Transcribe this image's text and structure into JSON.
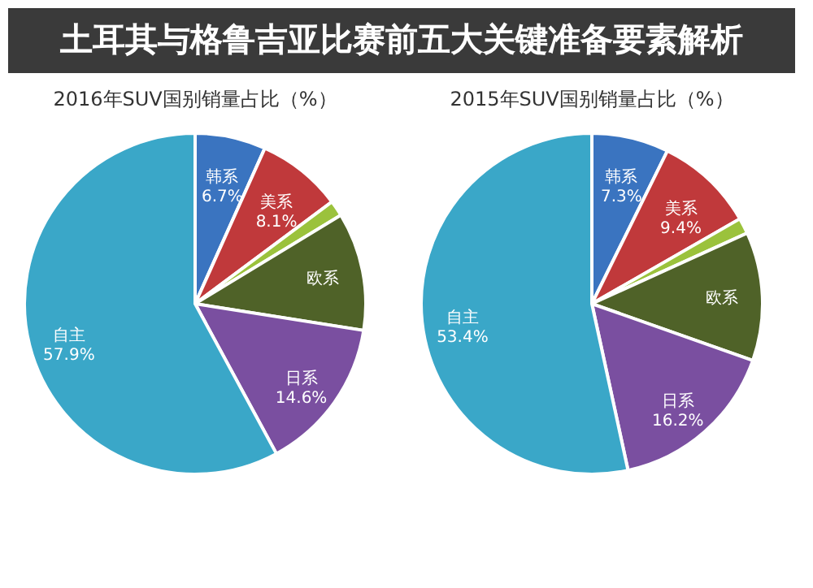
{
  "chart_data": [
    {
      "type": "other",
      "title": "土耳其与格鲁吉亚比赛前五大关键准备要素解析"
    },
    {
      "type": "pie",
      "title": "2016年SUV国别销量占比（%）",
      "categories": [
        "韩系",
        "美系",
        null,
        "欧系",
        "日系",
        "自主"
      ],
      "values": [
        6.7,
        8.1,
        1.5,
        11.2,
        14.6,
        57.9
      ],
      "value_labels": [
        "6.7%",
        "8.1%",
        null,
        null,
        "14.6%",
        "57.9%"
      ],
      "colors": [
        "#3a74c0",
        "#c0393b",
        "#9bc23c",
        "#4f6228",
        "#7a4fa0",
        "#3aa7c8"
      ],
      "legend": false
    },
    {
      "type": "pie",
      "title": "2015年SUV国别销量占比（%）",
      "categories": [
        "韩系",
        "美系",
        null,
        "欧系",
        "日系",
        "自主"
      ],
      "values": [
        7.3,
        9.4,
        1.5,
        12.2,
        16.2,
        53.4
      ],
      "value_labels": [
        "7.3%",
        "9.4%",
        null,
        null,
        "16.2%",
        "53.4%"
      ],
      "colors": [
        "#3a74c0",
        "#c0393b",
        "#9bc23c",
        "#4f6228",
        "#7a4fa0",
        "#3aa7c8"
      ],
      "legend": false
    }
  ]
}
